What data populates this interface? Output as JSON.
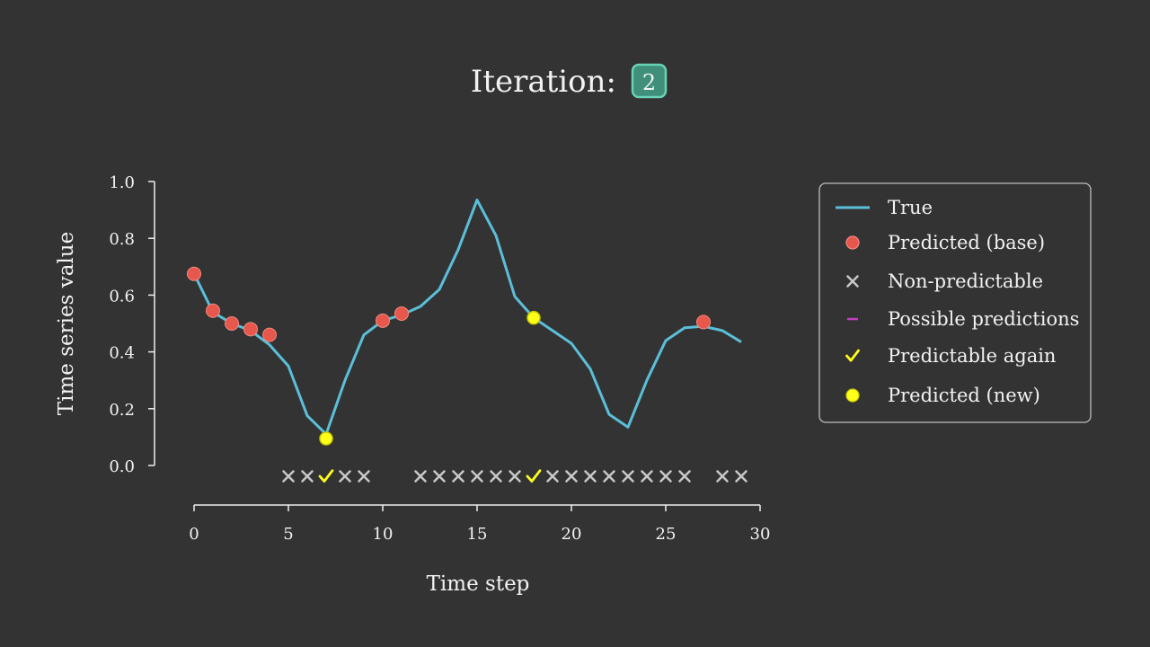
{
  "header": {
    "label": "Iteration:",
    "value": "2"
  },
  "chart_data": {
    "type": "line",
    "xlabel": "Time step",
    "ylabel": "Time series value",
    "xlim": [
      0,
      30
    ],
    "ylim": [
      0,
      1
    ],
    "xticks": [
      "0",
      "5",
      "10",
      "15",
      "20",
      "25",
      "30"
    ],
    "yticks": [
      "0.0",
      "0.2",
      "0.4",
      "0.6",
      "0.8",
      "1.0"
    ],
    "series": [
      {
        "name": "True",
        "x": [
          0,
          1,
          2,
          3,
          4,
          5,
          6,
          7,
          8,
          9,
          10,
          11,
          12,
          13,
          14,
          15,
          16,
          17,
          18,
          19,
          20,
          21,
          22,
          23,
          24,
          25,
          26,
          27,
          28,
          29
        ],
        "y": [
          0.675,
          0.54,
          0.5,
          0.475,
          0.425,
          0.35,
          0.175,
          0.11,
          0.3,
          0.46,
          0.51,
          0.53,
          0.56,
          0.62,
          0.76,
          0.935,
          0.81,
          0.595,
          0.52,
          0.475,
          0.43,
          0.34,
          0.18,
          0.135,
          0.3,
          0.44,
          0.485,
          0.49,
          0.475,
          0.435
        ]
      },
      {
        "name": "Predicted (base)",
        "x": [
          0,
          1,
          2,
          3,
          4,
          10,
          11,
          27
        ],
        "y": [
          0.675,
          0.545,
          0.5,
          0.48,
          0.46,
          0.51,
          0.535,
          0.505
        ]
      },
      {
        "name": "Predicted (new)",
        "x": [
          7,
          18
        ],
        "y": [
          0.095,
          0.52
        ]
      }
    ],
    "markers_row": {
      "non_predictable_x": [
        5,
        6,
        8,
        9,
        12,
        13,
        14,
        15,
        16,
        17,
        19,
        20,
        21,
        22,
        23,
        24,
        25,
        26,
        28,
        29
      ],
      "predictable_again_x": [
        7,
        18
      ]
    },
    "legend": {
      "position": "right",
      "items": [
        {
          "label": "True",
          "symbol": "line"
        },
        {
          "label": "Predicted (base)",
          "symbol": "circle"
        },
        {
          "label": "Non-predictable",
          "symbol": "cross"
        },
        {
          "label": "Possible predictions",
          "symbol": "dash"
        },
        {
          "label": "Predictable again",
          "symbol": "check"
        },
        {
          "label": "Predicted (new)",
          "symbol": "circle"
        }
      ]
    },
    "colors": {
      "true_line": "#5bbfd9",
      "predicted_base": "#e8574c",
      "non_predictable": "#c8c8c8",
      "possible_predictions": "#c040c0",
      "predictable_again": "#ffff1a",
      "predicted_new": "#ffff1a",
      "axis": "#f0f0f0",
      "badge_fill": "#3f8f7a",
      "badge_stroke": "#6ad2b6"
    },
    "grid": false
  }
}
